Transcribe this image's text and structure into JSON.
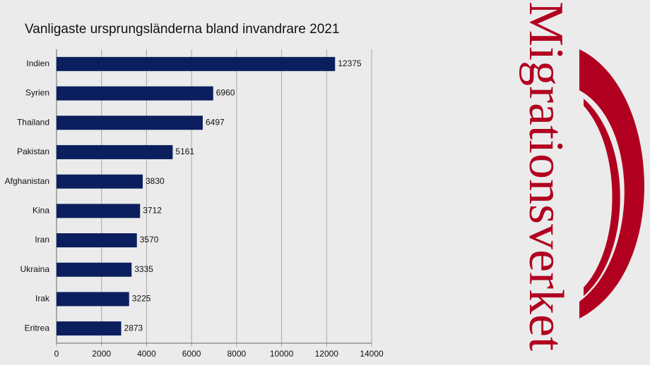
{
  "chart_data": {
    "type": "bar",
    "orientation": "horizontal",
    "title": "Vanligaste ursprungsländerna bland invandrare 2021",
    "categories": [
      "Indien",
      "Syrien",
      "Thailand",
      "Pakistan",
      "Afghanistan",
      "Kina",
      "Iran",
      "Ukraina",
      "Irak",
      "Eritrea"
    ],
    "values": [
      12375,
      6960,
      6497,
      5161,
      3830,
      3712,
      3570,
      3335,
      3225,
      2873
    ],
    "color": "#0b1f5e",
    "xlim": [
      0,
      14000
    ],
    "xticks": [
      0,
      2000,
      4000,
      6000,
      8000,
      10000,
      12000,
      14000
    ],
    "grid": true
  },
  "logo": "Migrationsverket"
}
